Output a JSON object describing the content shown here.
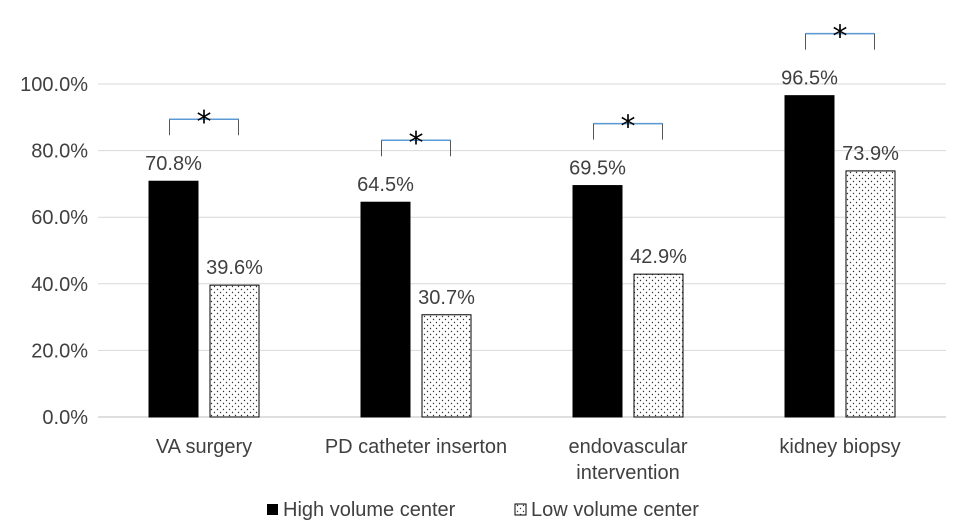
{
  "chart_data": {
    "type": "bar",
    "categories": [
      "VA surgery",
      "PD catheter inserton",
      "endovascular intervention",
      "kidney biopsy"
    ],
    "category_lines": [
      [
        "VA surgery"
      ],
      [
        "PD catheter inserton"
      ],
      [
        "endovascular",
        "intervention"
      ],
      [
        "kidney biopsy"
      ]
    ],
    "series": [
      {
        "name": "High volume center",
        "values": [
          70.8,
          64.5,
          69.5,
          96.5
        ],
        "labels": [
          "70.8%",
          "64.5%",
          "69.5%",
          "96.5%"
        ],
        "color": "#000000",
        "pattern": "solid"
      },
      {
        "name": "Low volume center",
        "values": [
          39.6,
          30.7,
          42.9,
          73.9
        ],
        "labels": [
          "39.6%",
          "30.7%",
          "42.9%",
          "73.9%"
        ],
        "color": "#000000",
        "pattern": "dotted"
      }
    ],
    "significance": [
      "*",
      "*",
      "*",
      "*"
    ],
    "bracket_color": "#5b9bd5",
    "ylim": [
      0,
      100
    ],
    "yticks": [
      0,
      20,
      40,
      60,
      80,
      100
    ],
    "ytick_labels": [
      "0.0%",
      "20.0%",
      "40.0%",
      "60.0%",
      "80.0%",
      "100.0%"
    ],
    "grid": true,
    "legend_position": "bottom",
    "title": "",
    "xlabel": "",
    "ylabel": ""
  }
}
